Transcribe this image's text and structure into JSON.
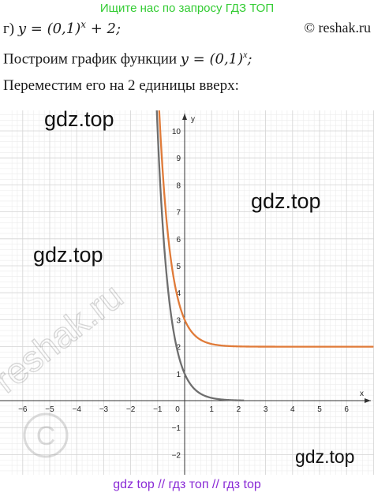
{
  "banner_top": "Ищите нас по запросу ГДЗ ТОП",
  "task": {
    "prefix": "г) ",
    "formula_y": "y",
    "formula_eq": " = (0,1)",
    "formula_exp": "x",
    "formula_tail": " + 2;"
  },
  "copyright": "© reshak.ru",
  "line2": {
    "text": "Построим график функции ",
    "formula": "y = (0,1)",
    "exp": "x",
    "tail": ";"
  },
  "line3": "Переместим его на 2 единицы вверх:",
  "watermarks": {
    "a": "gdz.top",
    "b": "gdz.top",
    "c": "gdz.top",
    "d": "gdz.top",
    "reshak": "reshak.ru"
  },
  "banner_bottom": "gdz top  //  гдз топ  //  гдз top",
  "chart_data": {
    "type": "line",
    "xlabel": "x",
    "ylabel": "y",
    "xlim": [
      -6.5,
      7
    ],
    "ylim": [
      -2.7,
      11
    ],
    "x_ticks": [
      -6,
      -5,
      -4,
      -3,
      -2,
      -1,
      0,
      1,
      2,
      3,
      4,
      5,
      6
    ],
    "y_ticks": [
      -2,
      -1,
      1,
      2,
      3,
      4,
      5,
      6,
      7,
      8,
      9,
      10
    ],
    "grid": true,
    "series": [
      {
        "function": "0.1^x",
        "color": "#6e6e6e",
        "x_range": [
          -1.05,
          2.2
        ],
        "points": [
          [
            -1,
            10
          ],
          [
            -0.5,
            3.16
          ],
          [
            0,
            1
          ],
          [
            0.5,
            0.32
          ],
          [
            1,
            0.1
          ],
          [
            2,
            0.01
          ]
        ]
      },
      {
        "function": "0.1^x + 2",
        "color": "#e07b39",
        "x_range": [
          -0.95,
          7
        ],
        "points": [
          [
            -0.9,
            9.94
          ],
          [
            -0.5,
            5.16
          ],
          [
            0,
            3
          ],
          [
            0.5,
            2.32
          ],
          [
            1,
            2.1
          ],
          [
            2,
            2.01
          ],
          [
            7,
            2
          ]
        ]
      }
    ]
  }
}
